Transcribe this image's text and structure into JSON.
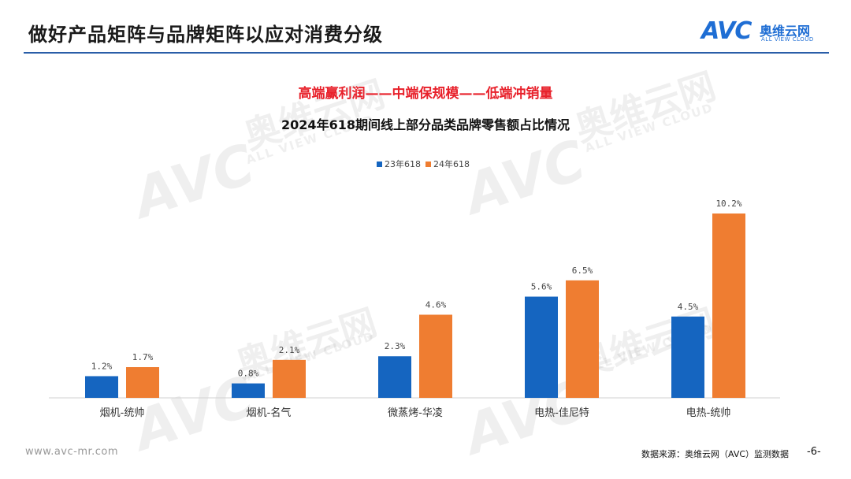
{
  "header": {
    "title": "做好产品矩阵与品牌矩阵以应对消费分级",
    "logo_text": "AVC",
    "logo_cn": "奥维云网",
    "logo_en": "ALL VIEW CLOUD"
  },
  "colors": {
    "series_23": "#1565c0",
    "series_24": "#ef7d31",
    "headline": "#e8212b",
    "rule": "#2a5ea8"
  },
  "chart_data": {
    "type": "bar",
    "headline": "高端赢利润——中端保规模——低端冲销量",
    "title": "2024年618期间线上部分品类品牌零售额占比情况",
    "categories": [
      "烟机-统帅",
      "烟机-名气",
      "微蒸烤-华凌",
      "电热-佳尼特",
      "电热-统帅"
    ],
    "series": [
      {
        "name": "23年618",
        "values": [
          1.2,
          0.8,
          2.3,
          5.6,
          4.5
        ],
        "labels": [
          "1.2%",
          "0.8%",
          "2.3%",
          "5.6%",
          "4.5%"
        ]
      },
      {
        "name": "24年618",
        "values": [
          1.7,
          2.1,
          4.6,
          6.5,
          10.2
        ],
        "labels": [
          "1.7%",
          "2.1%",
          "4.6%",
          "6.5%",
          "10.2%"
        ]
      }
    ],
    "ylim": [
      0,
      10.2
    ],
    "grid": false,
    "legend": "top-center"
  },
  "footer": {
    "url": "www.avc-mr.com",
    "source": "数据来源：奥维云网（AVC）监测数据",
    "page": "-6-"
  }
}
